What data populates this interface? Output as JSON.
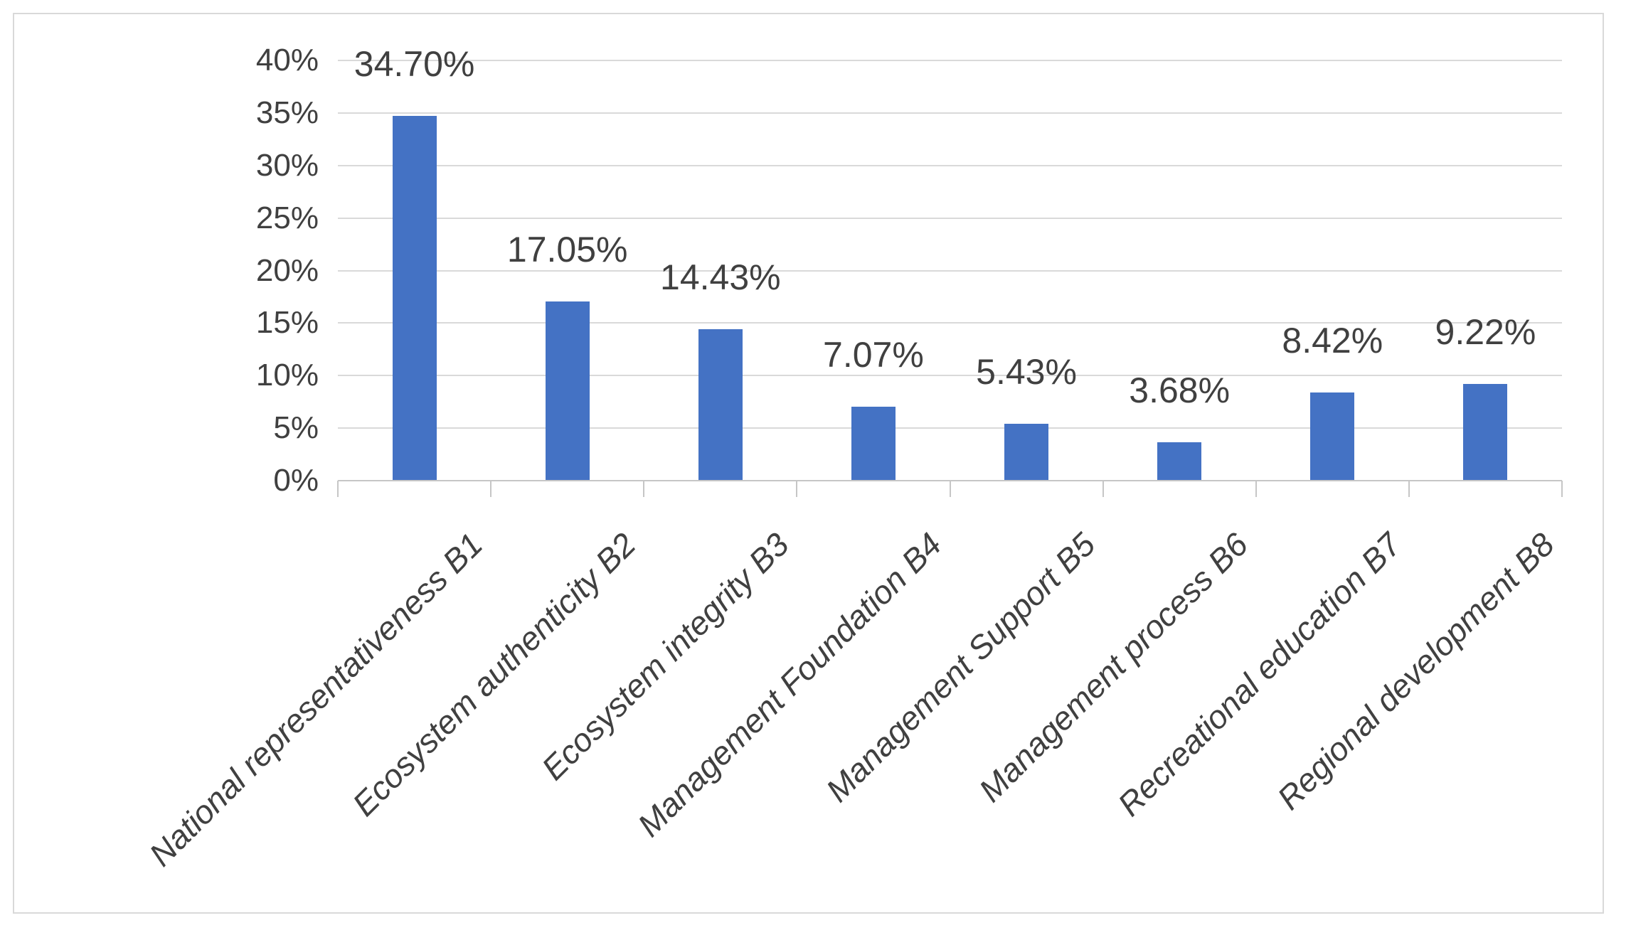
{
  "chart_data": {
    "type": "bar",
    "title": "",
    "categories": [
      "National representativeness B1",
      "Ecosystem authenticity B2",
      "Ecosystem integrity B3",
      "Management Foundation B4",
      "Management Support B5",
      "Management process B6",
      "Recreational education B7",
      "Regional development B8"
    ],
    "values": [
      34.7,
      17.05,
      14.43,
      7.07,
      5.43,
      3.68,
      8.42,
      9.22
    ],
    "data_labels": [
      "34.70%",
      "17.05%",
      "14.43%",
      "7.07%",
      "5.43%",
      "3.68%",
      "8.42%",
      "9.22%"
    ],
    "y_ticks": [
      "0%",
      "5%",
      "10%",
      "15%",
      "20%",
      "25%",
      "30%",
      "35%",
      "40%"
    ],
    "ylim": [
      0,
      40
    ],
    "y_step": 5,
    "grid": true,
    "legend": "none",
    "colors": {
      "bar": "#4472C4",
      "text": "#404040",
      "gridline": "#d9d9d9",
      "axis_line": "#c6c6c6",
      "frame_border": "#d9d9d9",
      "background": "#ffffff"
    }
  }
}
